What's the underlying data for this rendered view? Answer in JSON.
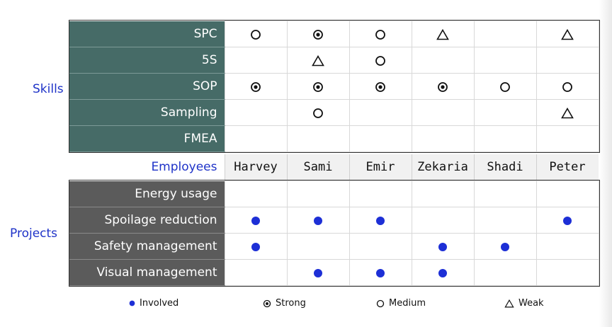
{
  "labels": {
    "skills": "Skills",
    "projects": "Projects",
    "employees": "Employees"
  },
  "employees": [
    "Harvey",
    "Sami",
    "Emir",
    "Zekaria",
    "Shadi",
    "Peter"
  ],
  "skills": [
    {
      "name": "SPC",
      "ratings": [
        "medium",
        "strong",
        "medium",
        "weak",
        "",
        "weak"
      ]
    },
    {
      "name": "5S",
      "ratings": [
        "",
        "weak",
        "medium",
        "",
        "",
        ""
      ]
    },
    {
      "name": "SOP",
      "ratings": [
        "strong",
        "strong",
        "strong",
        "strong",
        "medium",
        "medium"
      ]
    },
    {
      "name": "Sampling",
      "ratings": [
        "",
        "medium",
        "",
        "",
        "",
        "weak"
      ]
    },
    {
      "name": "FMEA",
      "ratings": [
        "",
        "",
        "",
        "",
        "",
        ""
      ]
    }
  ],
  "projects": [
    {
      "name": "Energy usage",
      "involved": [
        false,
        false,
        false,
        false,
        false,
        false
      ]
    },
    {
      "name": "Spoilage reduction",
      "involved": [
        true,
        true,
        true,
        false,
        false,
        true
      ]
    },
    {
      "name": "Safety management",
      "involved": [
        true,
        false,
        false,
        true,
        true,
        false
      ]
    },
    {
      "name": "Visual management",
      "involved": [
        false,
        true,
        true,
        true,
        false,
        false
      ]
    }
  ],
  "legend": [
    {
      "symbol": "involved",
      "label": "Involved"
    },
    {
      "symbol": "strong",
      "label": "Strong"
    },
    {
      "symbol": "medium",
      "label": "Medium"
    },
    {
      "symbol": "weak",
      "label": "Weak"
    }
  ],
  "colors": {
    "accent": "#1f33c8",
    "skills_header": "#466b67",
    "projects_header": "#5b5b5b",
    "dot": "#1d2fd6"
  }
}
